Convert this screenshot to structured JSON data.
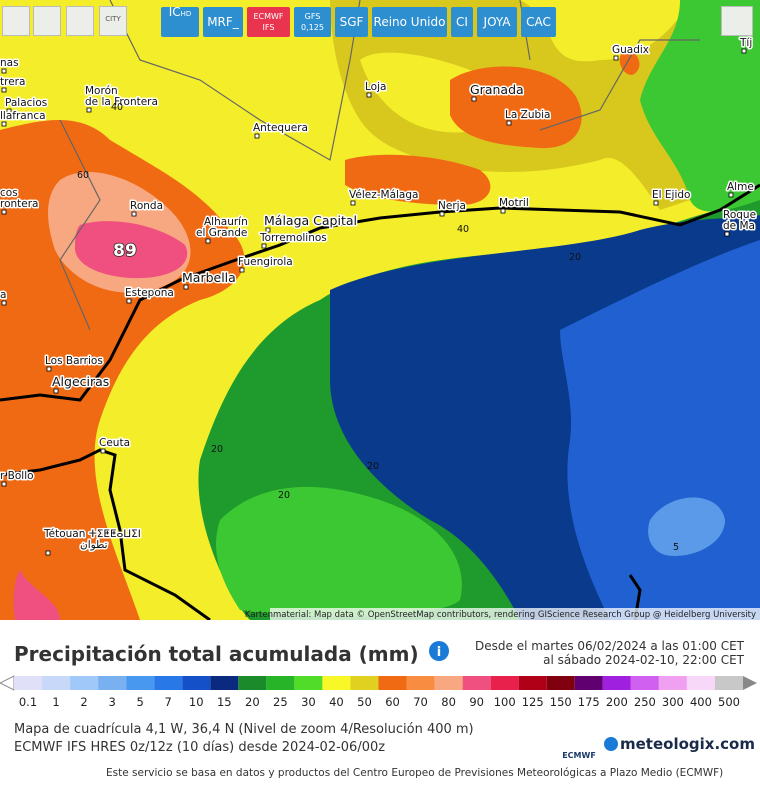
{
  "toolbar": {
    "city": "CITY",
    "buttons": [
      {
        "lines": [
          "IC",
          "HD"
        ]
      },
      {
        "lines": [
          "MRF_"
        ]
      },
      {
        "lines": [
          "ECMWF",
          "IFS"
        ]
      },
      {
        "lines": [
          "GFS",
          "0,125"
        ]
      },
      {
        "lines": [
          "SGF"
        ]
      },
      {
        "lines": [
          "Reino Unido"
        ]
      },
      {
        "lines": [
          "CI"
        ]
      },
      {
        "lines": [
          "JOYA"
        ]
      },
      {
        "lines": [
          "CAC"
        ]
      }
    ]
  },
  "map": {
    "places": [
      {
        "lines": [
          "nas"
        ]
      },
      {
        "lines": [
          "trera"
        ]
      },
      {
        "lines": [
          "Palacios"
        ]
      },
      {
        "lines": [
          "llafranca"
        ]
      },
      {
        "lines": [
          "Morón",
          "de la Frontera"
        ]
      },
      {
        "lines": [
          "Loja"
        ]
      },
      {
        "lines": [
          "Granada"
        ]
      },
      {
        "lines": [
          "La Zubia"
        ]
      },
      {
        "lines": [
          "Guadix"
        ]
      },
      {
        "lines": [
          "Antequera"
        ]
      },
      {
        "lines": [
          "Vélez-Málaga"
        ]
      },
      {
        "lines": [
          "Nerja"
        ]
      },
      {
        "lines": [
          "Motril"
        ]
      },
      {
        "lines": [
          "El Ejido"
        ]
      },
      {
        "lines": [
          "Alme"
        ]
      },
      {
        "lines": [
          "Roque",
          "de Ma"
        ]
      },
      {
        "lines": [
          "Tíj"
        ]
      },
      {
        "lines": [
          "Ronda"
        ]
      },
      {
        "lines": [
          "Alhaurín",
          "el Grande"
        ]
      },
      {
        "lines": [
          "Málaga Capital"
        ]
      },
      {
        "lines": [
          "Torremolinos"
        ]
      },
      {
        "lines": [
          "Fuengirola"
        ]
      },
      {
        "lines": [
          "Marbella"
        ]
      },
      {
        "lines": [
          "Estepona"
        ]
      },
      {
        "lines": [
          "cos",
          "rontera"
        ]
      },
      {
        "lines": [
          "a"
        ]
      },
      {
        "lines": [
          "Los Barrios"
        ]
      },
      {
        "lines": [
          "Algeciras"
        ]
      },
      {
        "lines": [
          "Ceuta"
        ]
      },
      {
        "lines": [
          "r Bollo"
        ]
      },
      {
        "lines": [
          "Tétouan ⵜⵉⵟⵟⴰⵡⵉⵏ",
          "تطوان"
        ]
      }
    ],
    "contours": [
      40,
      60,
      89,
      40,
      20,
      20,
      20,
      20,
      5
    ],
    "attribution": "Kartenmaterial: Map data © OpenStreetMap contributors, rendering GIScience Research Group @ Heidelberg University"
  },
  "legend": {
    "title": "Precipitación total acumulada (mm)",
    "period": [
      "Desde el martes 06/02/2024 a  las 01:00 CET",
      "al sábado 2024-02-10,  22:00 CET"
    ],
    "scale": {
      "values": [
        0.1,
        1,
        2,
        3,
        5,
        7,
        10,
        15,
        20,
        25,
        30,
        40,
        50,
        60,
        70,
        80,
        90,
        100,
        125,
        150,
        175,
        200,
        250,
        300,
        400,
        500
      ],
      "colors": [
        "#e0e0f8",
        "#c8d8f8",
        "#a0c8f8",
        "#78b0f0",
        "#4898f0",
        "#2878e8",
        "#1450c8",
        "#0a2a80",
        "#1a8a2a",
        "#28b428",
        "#50dc28",
        "#f8f828",
        "#e0d020",
        "#f06a14",
        "#f88c40",
        "#f8a880",
        "#f05080",
        "#e8204c",
        "#b00018",
        "#800010",
        "#600070",
        "#a020e0",
        "#d060f0",
        "#f0a0f0",
        "#f8d8f8",
        "#c8c8c8"
      ]
    },
    "info": [
      "Mapa de cuadrícula 4,1 W, 36,4 N (Nivel de zoom 4/Resolución 400 m)",
      "ECMWF IFS HRES 0z/12z (10 días) desde 2024-02-06/00z"
    ],
    "ecmwf_logo": "ECMWF",
    "brand": "meteologix.com",
    "footer": "Este servicio se basa en datos y productos del Centro Europeo de Previsiones Meteorológicas a Plazo Medio (ECMWF)"
  }
}
